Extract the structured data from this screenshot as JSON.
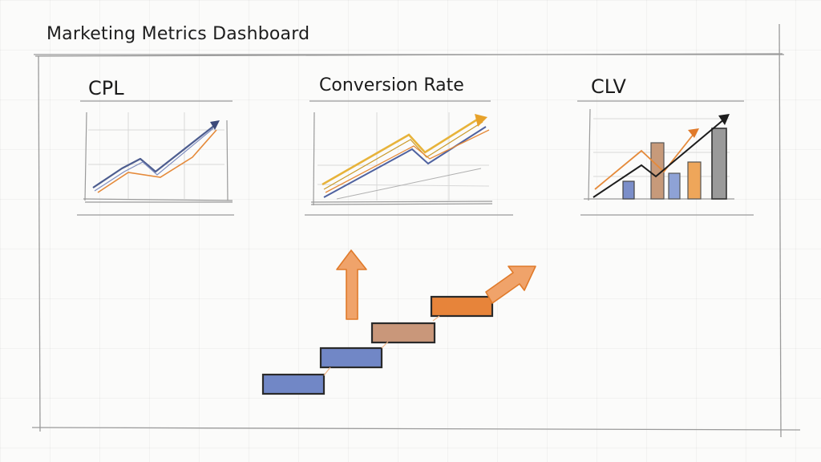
{
  "dashboard": {
    "title": "Marketing Metrics Dashboard"
  },
  "panels": [
    {
      "id": "cpl",
      "label": "CPL"
    },
    {
      "id": "conversion",
      "label": "Conversion Rate"
    },
    {
      "id": "clv",
      "label": "CLV"
    }
  ],
  "colors": {
    "ink": "#2a2a2a",
    "blue": "#5a74b8",
    "orange": "#e58a3a",
    "tan": "#b08a6a",
    "gold": "#e7b33a",
    "grey": "#8a8a8a"
  },
  "icons": {
    "stair_steps": "ascending-steps-icon",
    "up_arrow": "up-arrow-icon",
    "diagonal_arrow": "diagonal-up-arrow-icon"
  }
}
